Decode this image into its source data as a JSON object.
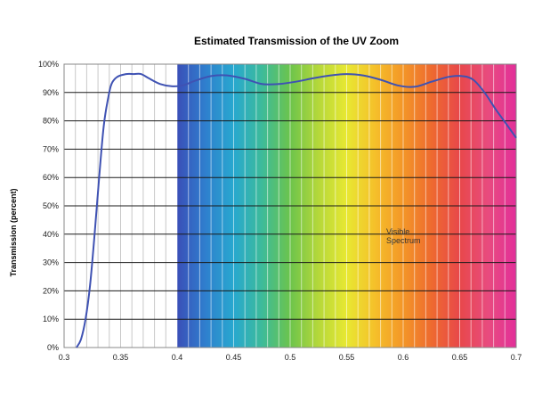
{
  "chart_data": {
    "type": "line",
    "title": "Estimated  Transmission of the UV Zoom",
    "xlabel": "",
    "ylabel": "Transmission (percent)",
    "xlim": [
      0.3,
      0.7
    ],
    "ylim": [
      0,
      100
    ],
    "x_ticks": [
      "0.3",
      "0.35",
      "0.4",
      "0.45",
      "0.5",
      "0.55",
      "0.6",
      "0.65",
      "0.7"
    ],
    "y_ticks": [
      "0%",
      "10%",
      "20%",
      "30%",
      "40%",
      "50%",
      "60%",
      "70%",
      "80%",
      "90%",
      "100%"
    ],
    "grid": true,
    "background_band": {
      "label": "Visible Spectrum",
      "x_start": 0.4,
      "x_end": 0.7,
      "colors": [
        "#3a4fb8",
        "#2f7fce",
        "#28a8cf",
        "#3dbb9a",
        "#6cc44c",
        "#b5d83a",
        "#e8e832",
        "#f5c02a",
        "#f39628",
        "#ee6a2f",
        "#e8484a",
        "#e84b7e",
        "#e22f9a"
      ]
    },
    "annotation": {
      "text_line1": "Visible",
      "text_line2": "Spectrum",
      "x": 0.585,
      "y": 40
    },
    "series": [
      {
        "color": "#3f52b3",
        "points": [
          [
            0.311,
            0
          ],
          [
            0.315,
            3
          ],
          [
            0.319,
            10
          ],
          [
            0.323,
            22
          ],
          [
            0.327,
            40
          ],
          [
            0.331,
            60
          ],
          [
            0.335,
            78
          ],
          [
            0.339,
            88
          ],
          [
            0.342,
            93
          ],
          [
            0.347,
            95.5
          ],
          [
            0.355,
            96.5
          ],
          [
            0.362,
            96.5
          ],
          [
            0.368,
            96.5
          ],
          [
            0.375,
            95
          ],
          [
            0.385,
            93
          ],
          [
            0.395,
            92.2
          ],
          [
            0.405,
            92.5
          ],
          [
            0.415,
            94
          ],
          [
            0.43,
            95.8
          ],
          [
            0.445,
            96
          ],
          [
            0.46,
            94.8
          ],
          [
            0.475,
            93
          ],
          [
            0.49,
            93
          ],
          [
            0.505,
            93.8
          ],
          [
            0.52,
            95
          ],
          [
            0.535,
            96
          ],
          [
            0.55,
            96.5
          ],
          [
            0.565,
            96
          ],
          [
            0.58,
            94.5
          ],
          [
            0.595,
            92.5
          ],
          [
            0.61,
            92
          ],
          [
            0.625,
            93.8
          ],
          [
            0.64,
            95.5
          ],
          [
            0.652,
            95.8
          ],
          [
            0.662,
            94.5
          ],
          [
            0.672,
            90
          ],
          [
            0.682,
            84
          ],
          [
            0.692,
            78.5
          ],
          [
            0.7,
            74
          ]
        ]
      }
    ]
  }
}
